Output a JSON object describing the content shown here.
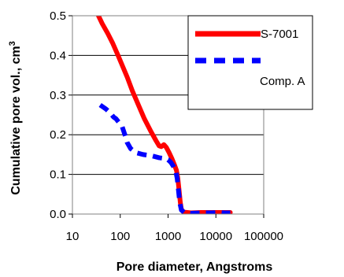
{
  "chart_data": {
    "type": "line",
    "title": "",
    "xlabel": "Pore diameter, Angstroms",
    "ylabel": "Cumulative pore vol., cm",
    "ylabel_superscript": "3",
    "x_scale": "log",
    "xlim": [
      10,
      100000
    ],
    "ylim": [
      0,
      0.5
    ],
    "x_ticks": [
      10,
      100,
      1000,
      10000,
      100000
    ],
    "x_tick_labels": [
      "10",
      "100",
      "1000",
      "10000",
      "100000"
    ],
    "y_ticks": [
      0,
      0.1,
      0.2,
      0.3,
      0.4,
      0.5
    ],
    "y_tick_labels": [
      "0.0",
      "0.1",
      "0.2",
      "0.3",
      "0.4",
      "0.5"
    ],
    "grid": "horizontal",
    "legend_position": "top-right",
    "series": [
      {
        "name": "S-7001",
        "color": "#ff0000",
        "style": "solid",
        "points": [
          [
            35,
            0.5
          ],
          [
            42,
            0.48
          ],
          [
            55,
            0.455
          ],
          [
            70,
            0.43
          ],
          [
            90,
            0.4
          ],
          [
            110,
            0.375
          ],
          [
            140,
            0.345
          ],
          [
            180,
            0.31
          ],
          [
            240,
            0.275
          ],
          [
            320,
            0.24
          ],
          [
            430,
            0.21
          ],
          [
            560,
            0.185
          ],
          [
            650,
            0.172
          ],
          [
            720,
            0.17
          ],
          [
            820,
            0.175
          ],
          [
            920,
            0.168
          ],
          [
            1050,
            0.155
          ],
          [
            1200,
            0.14
          ],
          [
            1350,
            0.125
          ],
          [
            1500,
            0.11
          ],
          [
            1600,
            0.09
          ],
          [
            1700,
            0.06
          ],
          [
            1800,
            0.03
          ],
          [
            1900,
            0.012
          ],
          [
            2100,
            0.005
          ],
          [
            3000,
            0.003
          ],
          [
            5000,
            0.004
          ],
          [
            10000,
            0.004
          ],
          [
            15000,
            0.004
          ],
          [
            20000,
            0.004
          ]
        ]
      },
      {
        "name": "Comp. A",
        "color": "#0000ff",
        "style": "dashed",
        "points": [
          [
            38,
            0.275
          ],
          [
            50,
            0.265
          ],
          [
            62,
            0.255
          ],
          [
            72,
            0.245
          ],
          [
            82,
            0.24
          ],
          [
            95,
            0.23
          ],
          [
            110,
            0.22
          ],
          [
            125,
            0.2
          ],
          [
            140,
            0.18
          ],
          [
            165,
            0.165
          ],
          [
            210,
            0.155
          ],
          [
            300,
            0.15
          ],
          [
            450,
            0.147
          ],
          [
            650,
            0.142
          ],
          [
            850,
            0.14
          ],
          [
            1000,
            0.137
          ],
          [
            1150,
            0.13
          ],
          [
            1300,
            0.12
          ],
          [
            1450,
            0.108
          ],
          [
            1550,
            0.09
          ],
          [
            1650,
            0.06
          ],
          [
            1750,
            0.03
          ],
          [
            1900,
            0.01
          ],
          [
            2200,
            0.004
          ],
          [
            3000,
            0.002
          ],
          [
            5000,
            0.003
          ],
          [
            8000,
            0.003
          ],
          [
            12000,
            0.004
          ],
          [
            15000,
            0.003
          ],
          [
            20000,
            0.003
          ]
        ]
      }
    ],
    "legend_entries": [
      "S-7001",
      "Comp. A"
    ]
  }
}
